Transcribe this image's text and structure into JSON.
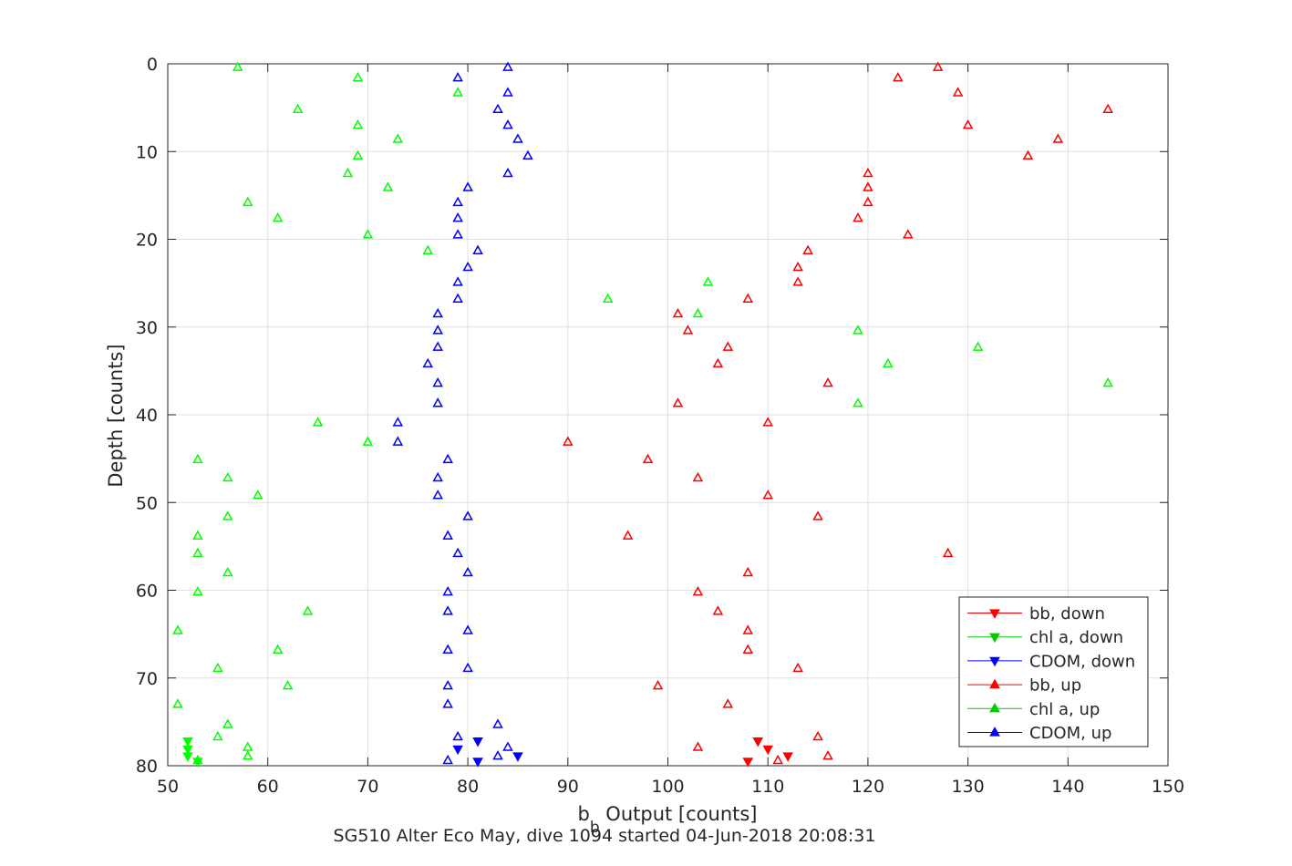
{
  "chart_data": {
    "type": "scatter",
    "title": "",
    "caption": "SG510 Alter Eco May, dive 1094 started 04-Jun-2018 20:08:31",
    "xlabel": {
      "main": "b",
      "sub": "b",
      "rest": " Output [counts]"
    },
    "ylabel": "Depth [counts]",
    "xlim": [
      50,
      150
    ],
    "ylim": [
      0,
      80
    ],
    "y_reversed": true,
    "grid": true,
    "legend_position": "bottom-right",
    "xticks": [
      50,
      60,
      70,
      80,
      90,
      100,
      110,
      120,
      130,
      140,
      150
    ],
    "yticks": [
      0,
      10,
      20,
      30,
      40,
      50,
      60,
      70,
      80
    ],
    "xtick_labels": [
      "50",
      "60",
      "70",
      "80",
      "90",
      "100",
      "110",
      "120",
      "130",
      "140",
      "150"
    ],
    "ytick_labels": [
      "0",
      "10",
      "20",
      "30",
      "40",
      "50",
      "60",
      "70",
      "80"
    ],
    "colors": {
      "red": "#ff0000",
      "green": "#00ff00",
      "blue": "#0000ff",
      "axis": "#262626",
      "grid": "#e0e0e0"
    },
    "legend": [
      {
        "label": "bb, down",
        "color": "#ff0000",
        "marker": "down"
      },
      {
        "label": "chl a, down",
        "color": "#00cc00",
        "marker": "down"
      },
      {
        "label": "CDOM, down",
        "color": "#0000ff",
        "marker": "down"
      },
      {
        "label": "bb, up",
        "color": "#ff0000",
        "marker": "up"
      },
      {
        "label": "chl a, up",
        "color": "#00cc00",
        "marker": "up"
      },
      {
        "label": "CDOM, up",
        "color": "#0000ff",
        "marker": "up"
      }
    ],
    "series": [
      {
        "name": "bb, down",
        "color": "#ff0000",
        "marker": "down",
        "points": [
          [
            109,
            77.2
          ],
          [
            110,
            78.1
          ],
          [
            112,
            78.9
          ],
          [
            108,
            79.5
          ]
        ]
      },
      {
        "name": "chl a, down",
        "color": "#00ff00",
        "marker": "down",
        "points": [
          [
            52,
            77.2
          ],
          [
            52,
            78.1
          ],
          [
            52,
            78.9
          ],
          [
            53,
            79.5
          ]
        ]
      },
      {
        "name": "CDOM, down",
        "color": "#0000ff",
        "marker": "down",
        "points": [
          [
            81,
            77.2
          ],
          [
            79,
            78.1
          ],
          [
            85,
            78.9
          ],
          [
            81,
            79.5
          ]
        ]
      },
      {
        "name": "bb, up",
        "color": "#ff0000",
        "marker": "up",
        "points": [
          [
            127,
            0.4
          ],
          [
            123,
            1.6
          ],
          [
            129,
            3.3
          ],
          [
            144,
            5.2
          ],
          [
            130,
            7.0
          ],
          [
            139,
            8.6
          ],
          [
            136,
            10.5
          ],
          [
            120,
            12.5
          ],
          [
            120,
            14.1
          ],
          [
            120,
            15.8
          ],
          [
            119,
            17.6
          ],
          [
            124,
            19.5
          ],
          [
            114,
            21.3
          ],
          [
            113,
            23.2
          ],
          [
            113,
            24.9
          ],
          [
            108,
            26.8
          ],
          [
            101,
            28.5
          ],
          [
            102,
            30.4
          ],
          [
            106,
            32.3
          ],
          [
            105,
            34.2
          ],
          [
            116,
            36.4
          ],
          [
            101,
            38.7
          ],
          [
            110,
            40.9
          ],
          [
            90,
            43.1
          ],
          [
            98,
            45.1
          ],
          [
            103,
            47.2
          ],
          [
            110,
            49.2
          ],
          [
            115,
            51.6
          ],
          [
            96,
            53.8
          ],
          [
            128,
            55.8
          ],
          [
            108,
            58.0
          ],
          [
            103,
            60.2
          ],
          [
            105,
            62.4
          ],
          [
            108,
            64.6
          ],
          [
            108,
            66.8
          ],
          [
            113,
            68.9
          ],
          [
            99,
            70.9
          ],
          [
            106,
            73.0
          ],
          [
            115,
            76.7
          ],
          [
            103,
            77.9
          ],
          [
            116,
            78.9
          ],
          [
            111,
            79.4
          ]
        ]
      },
      {
        "name": "chl a, up",
        "color": "#00ff00",
        "marker": "up",
        "points": [
          [
            57,
            0.4
          ],
          [
            69,
            1.6
          ],
          [
            79,
            3.3
          ],
          [
            63,
            5.2
          ],
          [
            69,
            7.0
          ],
          [
            73,
            8.6
          ],
          [
            69,
            10.5
          ],
          [
            68,
            12.5
          ],
          [
            72,
            14.1
          ],
          [
            58,
            15.8
          ],
          [
            61,
            17.6
          ],
          [
            70,
            19.5
          ],
          [
            76,
            21.3
          ],
          [
            104,
            24.9
          ],
          [
            94,
            26.8
          ],
          [
            103,
            28.5
          ],
          [
            119,
            30.4
          ],
          [
            131,
            32.3
          ],
          [
            122,
            34.2
          ],
          [
            144,
            36.4
          ],
          [
            119,
            38.7
          ],
          [
            65,
            40.9
          ],
          [
            70,
            43.1
          ],
          [
            53,
            45.1
          ],
          [
            56,
            47.2
          ],
          [
            59,
            49.2
          ],
          [
            56,
            51.6
          ],
          [
            53,
            53.8
          ],
          [
            53,
            55.8
          ],
          [
            56,
            58.0
          ],
          [
            53,
            60.2
          ],
          [
            64,
            62.4
          ],
          [
            51,
            64.6
          ],
          [
            61,
            66.8
          ],
          [
            55,
            68.9
          ],
          [
            62,
            70.9
          ],
          [
            51,
            73.0
          ],
          [
            56,
            75.3
          ],
          [
            55,
            76.7
          ],
          [
            58,
            77.9
          ],
          [
            58,
            78.9
          ],
          [
            53,
            79.4
          ]
        ]
      },
      {
        "name": "CDOM, up",
        "color": "#0000ff",
        "marker": "up",
        "points": [
          [
            84,
            0.4
          ],
          [
            79,
            1.6
          ],
          [
            84,
            3.3
          ],
          [
            83,
            5.2
          ],
          [
            84,
            7.0
          ],
          [
            85,
            8.6
          ],
          [
            86,
            10.5
          ],
          [
            84,
            12.5
          ],
          [
            80,
            14.1
          ],
          [
            79,
            15.8
          ],
          [
            79,
            17.6
          ],
          [
            79,
            19.5
          ],
          [
            81,
            21.3
          ],
          [
            80,
            23.2
          ],
          [
            79,
            24.9
          ],
          [
            79,
            26.8
          ],
          [
            77,
            28.5
          ],
          [
            77,
            30.4
          ],
          [
            77,
            32.3
          ],
          [
            76,
            34.2
          ],
          [
            77,
            36.4
          ],
          [
            77,
            38.7
          ],
          [
            73,
            40.9
          ],
          [
            73,
            43.1
          ],
          [
            78,
            45.1
          ],
          [
            77,
            47.2
          ],
          [
            77,
            49.2
          ],
          [
            80,
            51.6
          ],
          [
            78,
            53.8
          ],
          [
            79,
            55.8
          ],
          [
            80,
            58.0
          ],
          [
            78,
            60.2
          ],
          [
            78,
            62.4
          ],
          [
            80,
            64.6
          ],
          [
            78,
            66.8
          ],
          [
            80,
            68.9
          ],
          [
            78,
            70.9
          ],
          [
            78,
            73.0
          ],
          [
            83,
            75.3
          ],
          [
            79,
            76.7
          ],
          [
            84,
            77.9
          ],
          [
            83,
            78.9
          ],
          [
            78,
            79.4
          ]
        ]
      }
    ]
  }
}
